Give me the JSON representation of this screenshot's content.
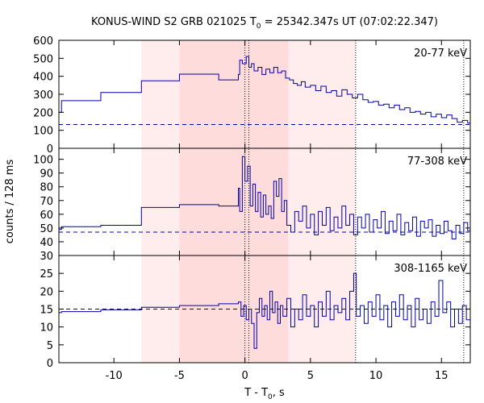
{
  "chart_data": {
    "type": "line",
    "title_main": "KONUS-WIND S2 GRB 021025 T",
    "title_sub": "0",
    "title_rest": " = 25342.347s UT (07:02:22.347)",
    "xlabel_main": "T - T",
    "xlabel_sub": "0",
    "xlabel_rest": ", s",
    "ylabel": "counts / 128 ms",
    "xlim": [
      -14.2,
      17.2
    ],
    "xticks": [
      -10,
      -5,
      0,
      5,
      10,
      15
    ],
    "xtick_labels": [
      "-10",
      "-5",
      "0",
      "5",
      "10",
      "15"
    ],
    "shaded_regions": [
      {
        "from": -7.9,
        "to": 8.45,
        "shade": "light"
      },
      {
        "from": -5.0,
        "to": 3.3,
        "shade": "dark"
      }
    ],
    "vertical_dotted_lines": [
      0.0,
      0.3,
      8.45,
      16.7
    ],
    "line_color": "#0000aa",
    "shade_light": "#ffecec",
    "shade_dark": "#ffdcdc",
    "panels": [
      {
        "label": "20-77 keV",
        "ylim": [
          0,
          600
        ],
        "yticks": [
          0,
          100,
          200,
          300,
          400,
          500,
          600
        ],
        "ytick_labels": [
          "0",
          "100",
          "200",
          "300",
          "400",
          "500",
          "600"
        ],
        "background": 132,
        "steps": [
          {
            "x": -14.2,
            "y": 200
          },
          {
            "x": -14.0,
            "y": 265
          },
          {
            "x": -11.0,
            "y": 310
          },
          {
            "x": -7.9,
            "y": 375
          },
          {
            "x": -5.0,
            "y": 412
          },
          {
            "x": -2.0,
            "y": 380
          },
          {
            "x": -0.5,
            "y": 410
          },
          {
            "x": -0.4,
            "y": 490
          },
          {
            "x": -0.2,
            "y": 470
          },
          {
            "x": 0.1,
            "y": 510
          },
          {
            "x": 0.3,
            "y": 450
          },
          {
            "x": 0.5,
            "y": 470
          },
          {
            "x": 0.7,
            "y": 430
          },
          {
            "x": 1.0,
            "y": 450
          },
          {
            "x": 1.3,
            "y": 410
          },
          {
            "x": 1.6,
            "y": 440
          },
          {
            "x": 1.9,
            "y": 420
          },
          {
            "x": 2.2,
            "y": 450
          },
          {
            "x": 2.5,
            "y": 420
          },
          {
            "x": 2.8,
            "y": 430
          },
          {
            "x": 3.1,
            "y": 390
          },
          {
            "x": 3.4,
            "y": 380
          },
          {
            "x": 3.7,
            "y": 360
          },
          {
            "x": 4.0,
            "y": 350
          },
          {
            "x": 4.3,
            "y": 370
          },
          {
            "x": 4.6,
            "y": 340
          },
          {
            "x": 5.0,
            "y": 350
          },
          {
            "x": 5.4,
            "y": 320
          },
          {
            "x": 5.8,
            "y": 345
          },
          {
            "x": 6.2,
            "y": 310
          },
          {
            "x": 6.6,
            "y": 320
          },
          {
            "x": 7.0,
            "y": 290
          },
          {
            "x": 7.4,
            "y": 325
          },
          {
            "x": 7.8,
            "y": 300
          },
          {
            "x": 8.2,
            "y": 280
          },
          {
            "x": 8.6,
            "y": 300
          },
          {
            "x": 9.0,
            "y": 270
          },
          {
            "x": 9.4,
            "y": 255
          },
          {
            "x": 9.8,
            "y": 260
          },
          {
            "x": 10.2,
            "y": 240
          },
          {
            "x": 10.6,
            "y": 245
          },
          {
            "x": 11.0,
            "y": 225
          },
          {
            "x": 11.4,
            "y": 240
          },
          {
            "x": 11.8,
            "y": 215
          },
          {
            "x": 12.2,
            "y": 225
          },
          {
            "x": 12.6,
            "y": 200
          },
          {
            "x": 13.0,
            "y": 205
          },
          {
            "x": 13.4,
            "y": 190
          },
          {
            "x": 13.8,
            "y": 200
          },
          {
            "x": 14.2,
            "y": 175
          },
          {
            "x": 14.6,
            "y": 190
          },
          {
            "x": 15.0,
            "y": 170
          },
          {
            "x": 15.4,
            "y": 185
          },
          {
            "x": 15.8,
            "y": 165
          },
          {
            "x": 16.2,
            "y": 145
          },
          {
            "x": 16.6,
            "y": 155
          },
          {
            "x": 17.0,
            "y": 140
          }
        ]
      },
      {
        "label": "77-308 keV",
        "ylim": [
          30,
          108
        ],
        "yticks": [
          30,
          40,
          50,
          60,
          70,
          80,
          90,
          100
        ],
        "ytick_labels": [
          "30",
          "40",
          "50",
          "60",
          "70",
          "80",
          "90",
          "100"
        ],
        "background": 47,
        "steps": [
          {
            "x": -14.2,
            "y": 49
          },
          {
            "x": -14.0,
            "y": 51
          },
          {
            "x": -11.0,
            "y": 52
          },
          {
            "x": -7.9,
            "y": 65
          },
          {
            "x": -5.0,
            "y": 67
          },
          {
            "x": -2.0,
            "y": 66
          },
          {
            "x": -0.5,
            "y": 79
          },
          {
            "x": -0.4,
            "y": 62
          },
          {
            "x": -0.2,
            "y": 102
          },
          {
            "x": 0.0,
            "y": 84
          },
          {
            "x": 0.2,
            "y": 95
          },
          {
            "x": 0.4,
            "y": 66
          },
          {
            "x": 0.6,
            "y": 82
          },
          {
            "x": 0.8,
            "y": 62
          },
          {
            "x": 1.0,
            "y": 76
          },
          {
            "x": 1.2,
            "y": 58
          },
          {
            "x": 1.4,
            "y": 74
          },
          {
            "x": 1.6,
            "y": 60
          },
          {
            "x": 1.8,
            "y": 66
          },
          {
            "x": 2.0,
            "y": 57
          },
          {
            "x": 2.2,
            "y": 84
          },
          {
            "x": 2.4,
            "y": 73
          },
          {
            "x": 2.6,
            "y": 86
          },
          {
            "x": 2.8,
            "y": 62
          },
          {
            "x": 3.0,
            "y": 70
          },
          {
            "x": 3.2,
            "y": 52
          },
          {
            "x": 3.5,
            "y": 47
          },
          {
            "x": 3.8,
            "y": 62
          },
          {
            "x": 4.1,
            "y": 55
          },
          {
            "x": 4.4,
            "y": 66
          },
          {
            "x": 4.7,
            "y": 50
          },
          {
            "x": 5.0,
            "y": 60
          },
          {
            "x": 5.3,
            "y": 45
          },
          {
            "x": 5.6,
            "y": 62
          },
          {
            "x": 5.9,
            "y": 52
          },
          {
            "x": 6.2,
            "y": 65
          },
          {
            "x": 6.5,
            "y": 48
          },
          {
            "x": 6.8,
            "y": 58
          },
          {
            "x": 7.1,
            "y": 50
          },
          {
            "x": 7.4,
            "y": 66
          },
          {
            "x": 7.7,
            "y": 52
          },
          {
            "x": 8.0,
            "y": 60
          },
          {
            "x": 8.3,
            "y": 45
          },
          {
            "x": 8.6,
            "y": 58
          },
          {
            "x": 8.9,
            "y": 50
          },
          {
            "x": 9.2,
            "y": 60
          },
          {
            "x": 9.5,
            "y": 47
          },
          {
            "x": 9.8,
            "y": 56
          },
          {
            "x": 10.1,
            "y": 50
          },
          {
            "x": 10.4,
            "y": 62
          },
          {
            "x": 10.7,
            "y": 46
          },
          {
            "x": 11.0,
            "y": 55
          },
          {
            "x": 11.3,
            "y": 48
          },
          {
            "x": 11.6,
            "y": 60
          },
          {
            "x": 11.9,
            "y": 45
          },
          {
            "x": 12.2,
            "y": 54
          },
          {
            "x": 12.5,
            "y": 48
          },
          {
            "x": 12.8,
            "y": 58
          },
          {
            "x": 13.1,
            "y": 44
          },
          {
            "x": 13.4,
            "y": 55
          },
          {
            "x": 13.7,
            "y": 50
          },
          {
            "x": 14.0,
            "y": 56
          },
          {
            "x": 14.3,
            "y": 44
          },
          {
            "x": 14.6,
            "y": 52
          },
          {
            "x": 14.9,
            "y": 46
          },
          {
            "x": 15.2,
            "y": 55
          },
          {
            "x": 15.5,
            "y": 48
          },
          {
            "x": 15.8,
            "y": 42
          },
          {
            "x": 16.1,
            "y": 52
          },
          {
            "x": 16.4,
            "y": 46
          },
          {
            "x": 16.7,
            "y": 54
          },
          {
            "x": 17.0,
            "y": 48
          }
        ]
      },
      {
        "label": "308-1165 keV",
        "ylim": [
          0,
          30
        ],
        "yticks": [
          0,
          5,
          10,
          15,
          20,
          25
        ],
        "ytick_labels": [
          "0",
          "5",
          "10",
          "15",
          "20",
          "25"
        ],
        "background": 15,
        "steps": [
          {
            "x": -14.2,
            "y": 14
          },
          {
            "x": -14.0,
            "y": 14.3
          },
          {
            "x": -11.0,
            "y": 14.8
          },
          {
            "x": -7.9,
            "y": 15.5
          },
          {
            "x": -5.0,
            "y": 16
          },
          {
            "x": -2.0,
            "y": 16.5
          },
          {
            "x": -0.5,
            "y": 17
          },
          {
            "x": -0.3,
            "y": 13
          },
          {
            "x": -0.1,
            "y": 16
          },
          {
            "x": 0.1,
            "y": 12
          },
          {
            "x": 0.3,
            "y": 15
          },
          {
            "x": 0.5,
            "y": 11
          },
          {
            "x": 0.7,
            "y": 4
          },
          {
            "x": 0.9,
            "y": 14
          },
          {
            "x": 1.1,
            "y": 18
          },
          {
            "x": 1.3,
            "y": 13
          },
          {
            "x": 1.5,
            "y": 16
          },
          {
            "x": 1.7,
            "y": 12
          },
          {
            "x": 1.9,
            "y": 20
          },
          {
            "x": 2.1,
            "y": 14
          },
          {
            "x": 2.3,
            "y": 17
          },
          {
            "x": 2.5,
            "y": 11
          },
          {
            "x": 2.7,
            "y": 16
          },
          {
            "x": 2.9,
            "y": 13
          },
          {
            "x": 3.2,
            "y": 18
          },
          {
            "x": 3.5,
            "y": 10
          },
          {
            "x": 3.8,
            "y": 15
          },
          {
            "x": 4.1,
            "y": 12
          },
          {
            "x": 4.4,
            "y": 19
          },
          {
            "x": 4.7,
            "y": 13
          },
          {
            "x": 5.0,
            "y": 16
          },
          {
            "x": 5.3,
            "y": 10
          },
          {
            "x": 5.6,
            "y": 17
          },
          {
            "x": 5.9,
            "y": 13
          },
          {
            "x": 6.2,
            "y": 20
          },
          {
            "x": 6.5,
            "y": 12
          },
          {
            "x": 6.8,
            "y": 16
          },
          {
            "x": 7.1,
            "y": 14
          },
          {
            "x": 7.4,
            "y": 18
          },
          {
            "x": 7.7,
            "y": 12
          },
          {
            "x": 8.0,
            "y": 20
          },
          {
            "x": 8.3,
            "y": 25
          },
          {
            "x": 8.5,
            "y": 13
          },
          {
            "x": 8.8,
            "y": 16
          },
          {
            "x": 9.1,
            "y": 11
          },
          {
            "x": 9.4,
            "y": 17
          },
          {
            "x": 9.7,
            "y": 13
          },
          {
            "x": 10.0,
            "y": 19
          },
          {
            "x": 10.3,
            "y": 12
          },
          {
            "x": 10.6,
            "y": 16
          },
          {
            "x": 10.9,
            "y": 10
          },
          {
            "x": 11.2,
            "y": 17
          },
          {
            "x": 11.5,
            "y": 13
          },
          {
            "x": 11.8,
            "y": 19
          },
          {
            "x": 12.1,
            "y": 12
          },
          {
            "x": 12.4,
            "y": 16
          },
          {
            "x": 12.7,
            "y": 10
          },
          {
            "x": 13.0,
            "y": 18
          },
          {
            "x": 13.3,
            "y": 12
          },
          {
            "x": 13.6,
            "y": 15
          },
          {
            "x": 13.9,
            "y": 11
          },
          {
            "x": 14.2,
            "y": 17
          },
          {
            "x": 14.5,
            "y": 13
          },
          {
            "x": 14.8,
            "y": 23
          },
          {
            "x": 15.1,
            "y": 14
          },
          {
            "x": 15.4,
            "y": 17
          },
          {
            "x": 15.7,
            "y": 10
          },
          {
            "x": 16.0,
            "y": 15
          },
          {
            "x": 16.3,
            "y": 11
          },
          {
            "x": 16.6,
            "y": 16
          },
          {
            "x": 16.9,
            "y": 12
          }
        ]
      }
    ]
  }
}
